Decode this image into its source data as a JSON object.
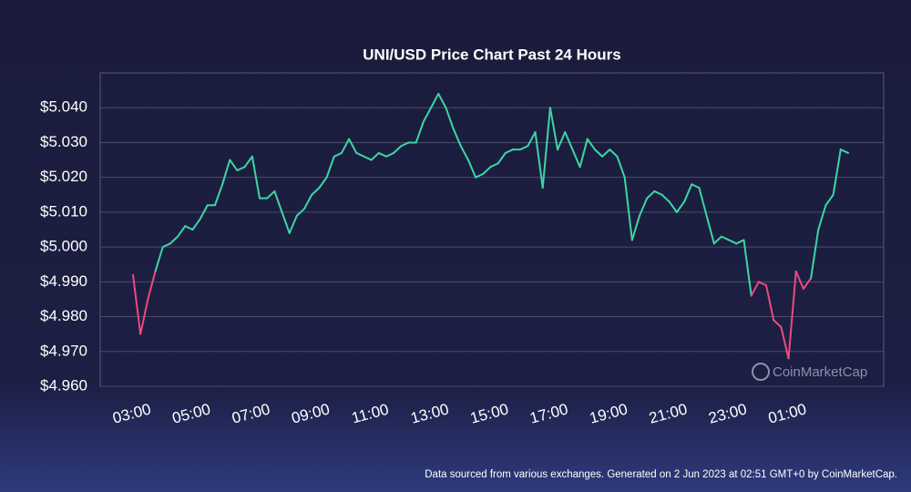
{
  "chart_data": {
    "type": "line",
    "title": "UNI/USD Price Chart Past 24 Hours",
    "x": [
      "02:51",
      "03:06",
      "03:21",
      "03:36",
      "03:51",
      "04:06",
      "04:21",
      "04:36",
      "04:51",
      "05:06",
      "05:21",
      "05:36",
      "05:51",
      "06:06",
      "06:21",
      "06:36",
      "06:51",
      "07:06",
      "07:21",
      "07:36",
      "07:51",
      "08:06",
      "08:21",
      "08:36",
      "08:51",
      "09:06",
      "09:21",
      "09:36",
      "09:51",
      "10:06",
      "10:21",
      "10:36",
      "10:51",
      "11:06",
      "11:21",
      "11:36",
      "11:51",
      "12:06",
      "12:21",
      "12:36",
      "12:51",
      "13:06",
      "13:21",
      "13:36",
      "13:51",
      "14:06",
      "14:21",
      "14:36",
      "14:51",
      "15:06",
      "15:21",
      "15:36",
      "15:51",
      "16:06",
      "16:21",
      "16:36",
      "16:51",
      "17:06",
      "17:21",
      "17:36",
      "17:51",
      "18:06",
      "18:21",
      "18:36",
      "18:51",
      "19:06",
      "19:21",
      "19:36",
      "19:51",
      "20:06",
      "20:21",
      "20:36",
      "20:51",
      "21:06",
      "21:21",
      "21:36",
      "21:51",
      "22:06",
      "22:21",
      "22:36",
      "22:51",
      "23:06",
      "23:21",
      "23:36",
      "23:51",
      "00:06",
      "00:21",
      "00:36",
      "00:51",
      "01:06",
      "01:21",
      "01:36",
      "01:51",
      "02:06",
      "02:21",
      "02:36",
      "02:51"
    ],
    "values": [
      4.992,
      4.975,
      4.985,
      4.993,
      5.0,
      5.001,
      5.003,
      5.006,
      5.005,
      5.008,
      5.012,
      5.012,
      5.018,
      5.025,
      5.022,
      5.023,
      5.026,
      5.014,
      5.014,
      5.016,
      5.01,
      5.004,
      5.009,
      5.011,
      5.015,
      5.017,
      5.02,
      5.026,
      5.027,
      5.031,
      5.027,
      5.026,
      5.025,
      5.027,
      5.026,
      5.027,
      5.029,
      5.03,
      5.03,
      5.036,
      5.04,
      5.044,
      5.04,
      5.034,
      5.029,
      5.025,
      5.02,
      5.021,
      5.023,
      5.024,
      5.027,
      5.028,
      5.028,
      5.029,
      5.033,
      5.017,
      5.04,
      5.028,
      5.033,
      5.028,
      5.023,
      5.031,
      5.028,
      5.026,
      5.028,
      5.026,
      5.02,
      5.002,
      5.009,
      5.014,
      5.016,
      5.015,
      5.013,
      5.01,
      5.013,
      5.018,
      5.017,
      5.009,
      5.001,
      5.003,
      5.002,
      5.001,
      5.002,
      4.986,
      4.99,
      4.989,
      4.979,
      4.977,
      4.968,
      4.993,
      4.988,
      4.991,
      5.005,
      5.012,
      5.015,
      5.028,
      5.027
    ],
    "color": "#3dd6a3",
    "negative_color": "#ec4a7e",
    "ylim": [
      4.96,
      5.05
    ],
    "yticks": [
      {
        "value": 4.96,
        "label": "$4.960"
      },
      {
        "value": 4.97,
        "label": "$4.970"
      },
      {
        "value": 4.98,
        "label": "$4.980"
      },
      {
        "value": 4.99,
        "label": "$4.990"
      },
      {
        "value": 5.0,
        "label": "$5.000"
      },
      {
        "value": 5.01,
        "label": "$5.010"
      },
      {
        "value": 5.02,
        "label": "$5.020"
      },
      {
        "value": 5.03,
        "label": "$5.030"
      },
      {
        "value": 5.04,
        "label": "$5.040"
      }
    ],
    "xticks": [
      "03:00",
      "05:00",
      "07:00",
      "09:00",
      "11:00",
      "13:00",
      "15:00",
      "17:00",
      "19:00",
      "21:00",
      "23:00",
      "01:00"
    ],
    "grid": true,
    "watermark": "CoinMarketCap",
    "footnote": "Data sourced from various exchanges. Generated on 2 Jun 2023 at 02:51 GMT+0 by CoinMarketCap."
  }
}
